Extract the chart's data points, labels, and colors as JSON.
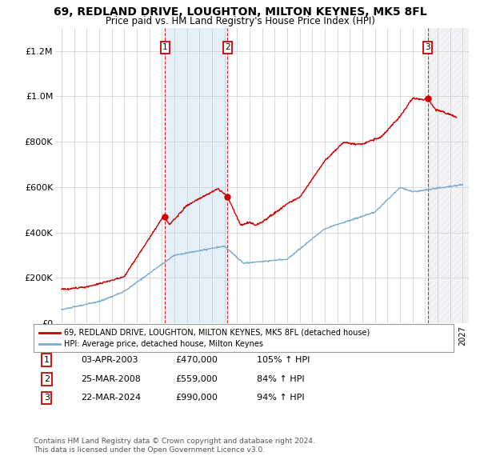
{
  "title": "69, REDLAND DRIVE, LOUGHTON, MILTON KEYNES, MK5 8FL",
  "subtitle": "Price paid vs. HM Land Registry's House Price Index (HPI)",
  "legend_line1": "69, REDLAND DRIVE, LOUGHTON, MILTON KEYNES, MK5 8FL (detached house)",
  "legend_line2": "HPI: Average price, detached house, Milton Keynes",
  "footnote1": "Contains HM Land Registry data © Crown copyright and database right 2024.",
  "footnote2": "This data is licensed under the Open Government Licence v3.0.",
  "transactions": [
    {
      "label": "1",
      "date": "03-APR-2003",
      "price": 470000,
      "hpi_pct": "105% ↑ HPI",
      "year": 2003.25
    },
    {
      "label": "2",
      "date": "25-MAR-2008",
      "price": 559000,
      "hpi_pct": "84% ↑ HPI",
      "year": 2008.23
    },
    {
      "label": "3",
      "date": "22-MAR-2024",
      "price": 990000,
      "hpi_pct": "94% ↑ HPI",
      "year": 2024.22
    }
  ],
  "ylim": [
    0,
    1300000
  ],
  "xlim": [
    1994.5,
    2027.5
  ],
  "red_color": "#cc0000",
  "blue_color": "#7aadcf",
  "shade_color": "#ddeeff",
  "grid_color": "#cccccc",
  "bg_color": "#ffffff",
  "yticks": [
    0,
    200000,
    400000,
    600000,
    800000,
    1000000,
    1200000
  ]
}
